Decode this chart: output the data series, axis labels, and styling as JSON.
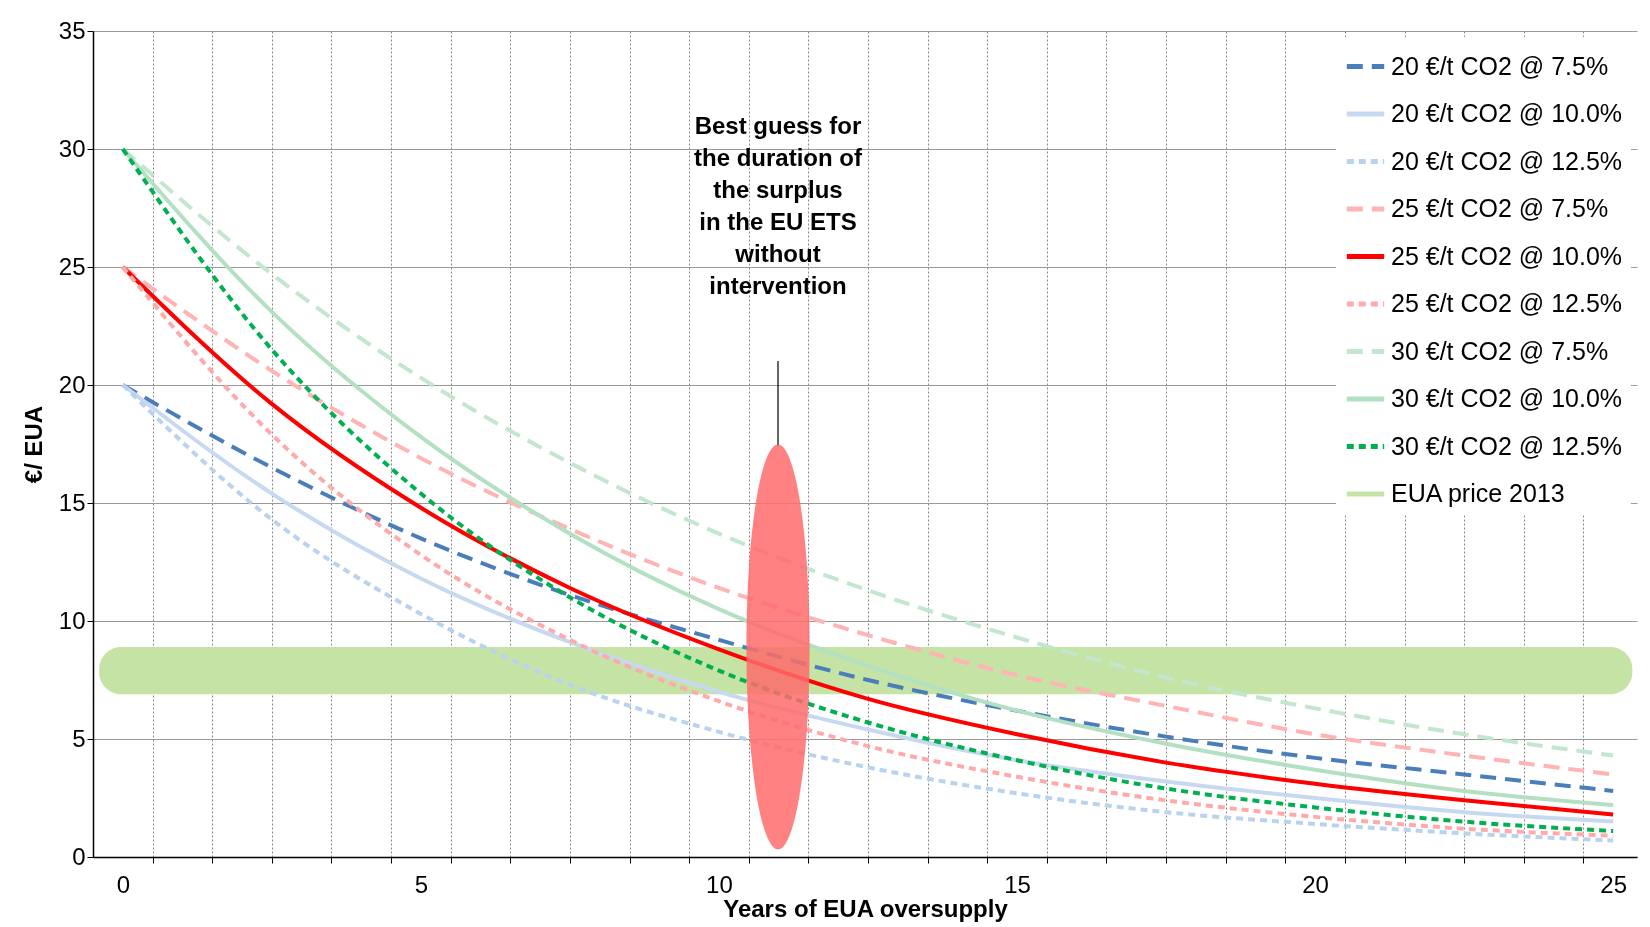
{
  "chart_data": {
    "type": "line",
    "xlabel": "Years of EUA oversupply",
    "ylabel": "€/ EUA",
    "x": [
      0,
      2.5,
      5,
      7.5,
      10,
      12.5,
      15,
      17.5,
      20,
      22.5,
      25
    ],
    "xlim": [
      -0.5,
      25.4
    ],
    "xticks": [
      0,
      {
        "value": 0.5,
        "label": null
      },
      {
        "value": 1.5,
        "label": null
      },
      {
        "value": 2.5,
        "label": null
      },
      {
        "value": 3.5,
        "label": null
      },
      {
        "value": 4.5,
        "label": null
      },
      5,
      {
        "value": 5.5,
        "label": null
      },
      {
        "value": 6.5,
        "label": null
      },
      {
        "value": 7.5,
        "label": null
      },
      {
        "value": 8.5,
        "label": null
      },
      {
        "value": 9.5,
        "label": null
      },
      10,
      {
        "value": 10.5,
        "label": null
      },
      {
        "value": 11.5,
        "label": null
      },
      {
        "value": 12.5,
        "label": null
      },
      {
        "value": 13.5,
        "label": null
      },
      {
        "value": 14.5,
        "label": null
      },
      15,
      {
        "value": 15.5,
        "label": null
      },
      {
        "value": 16.5,
        "label": null
      },
      {
        "value": 17.5,
        "label": null
      },
      {
        "value": 18.5,
        "label": null
      },
      {
        "value": 19.5,
        "label": null
      },
      20,
      {
        "value": 20.5,
        "label": null
      },
      {
        "value": 21.5,
        "label": null
      },
      {
        "value": 22.5,
        "label": null
      },
      {
        "value": 23.5,
        "label": null
      },
      {
        "value": 24.5,
        "label": null
      },
      25
    ],
    "ylim": [
      0,
      35
    ],
    "yticks": [
      0,
      5,
      10,
      15,
      20,
      25,
      30,
      35
    ],
    "grid": true,
    "legend": "top right",
    "series": [
      {
        "name": "20 €/t CO2 @ 7.5%",
        "color": "#4a7ebb",
        "line_style": "dashed",
        "values": [
          20,
          16.5,
          13.5,
          11.1,
          9.2,
          7.5,
          6.2,
          5.1,
          4.2,
          3.5,
          2.8
        ]
      },
      {
        "name": "20 €/t CO2 @ 10.0%",
        "color": "#c6d9f1",
        "line_style": "solid",
        "values": [
          20,
          15.4,
          11.8,
          9.1,
          7.0,
          5.4,
          4.1,
          3.2,
          2.5,
          1.9,
          1.5
        ]
      },
      {
        "name": "20 €/t CO2 @ 12.5%",
        "color": "#b9d3ee",
        "line_style": "dotted",
        "values": [
          20,
          14.3,
          10.3,
          7.3,
          5.3,
          3.8,
          2.7,
          1.9,
          1.4,
          1.0,
          0.7
        ]
      },
      {
        "name": "25 €/t CO2 @ 7.5%",
        "color": "#ffb3b3",
        "line_style": "dashed",
        "values": [
          25,
          20.6,
          16.9,
          13.9,
          11.4,
          9.4,
          7.7,
          6.4,
          5.2,
          4.3,
          3.5
        ]
      },
      {
        "name": "25 €/t CO2 @ 10.0%",
        "color": "#ff0000",
        "line_style": "solid",
        "values": [
          25,
          19.2,
          14.8,
          11.4,
          8.8,
          6.7,
          5.2,
          4.0,
          3.1,
          2.4,
          1.8
        ]
      },
      {
        "name": "25 €/t CO2 @ 12.5%",
        "color": "#ffaaaa",
        "line_style": "dotted",
        "values": [
          25,
          17.9,
          12.8,
          9.2,
          6.6,
          4.7,
          3.4,
          2.4,
          1.7,
          1.2,
          0.9
        ]
      },
      {
        "name": "30 €/t CO2 @ 7.5%",
        "color": "#c3e6cf",
        "line_style": "dashed",
        "values": [
          30,
          24.7,
          20.3,
          16.7,
          13.7,
          11.3,
          9.3,
          7.6,
          6.3,
          5.2,
          4.3
        ]
      },
      {
        "name": "30 €/t CO2 @ 10.0%",
        "color": "#b3e0c3",
        "line_style": "solid",
        "values": [
          30,
          23.1,
          17.8,
          13.7,
          10.5,
          8.1,
          6.2,
          4.8,
          3.7,
          2.8,
          2.2
        ]
      },
      {
        "name": "30 €/t CO2 @ 12.5%",
        "color": "#00b050",
        "line_style": "dotted",
        "values": [
          30,
          21.5,
          15.4,
          11.0,
          7.9,
          5.7,
          4.1,
          2.9,
          2.1,
          1.5,
          1.1
        ]
      }
    ],
    "bands": [
      {
        "axis": "y",
        "from": 6.9,
        "to": 8.9,
        "label": "EUA price 2013",
        "color": "#c4e3a4"
      }
    ],
    "annotations": [
      "Best guess for\nthe duration of\nthe surplus\nin the EU ETS\nwithout\nintervention"
    ]
  }
}
